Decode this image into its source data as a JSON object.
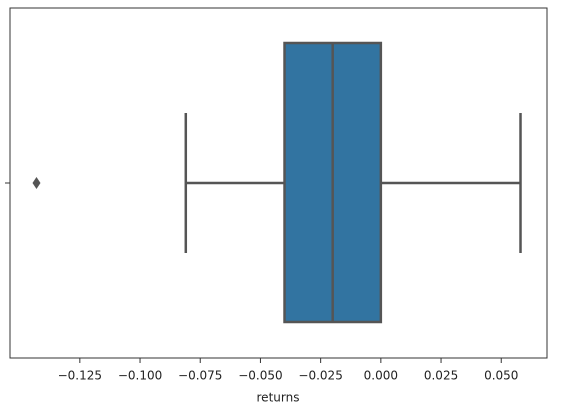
{
  "chart_data": {
    "type": "box",
    "x_label": "returns",
    "color": "#3274a1",
    "line_color": "#555555",
    "series": [
      {
        "q1": -0.04,
        "median": -0.02,
        "q3": 0.0,
        "whisker_low": -0.081,
        "whisker_high": 0.058,
        "outliers": [
          -0.143
        ]
      }
    ],
    "xlim": [
      -0.154,
      0.069
    ],
    "xticks": [
      {
        "value": -0.125,
        "label": "−0.125"
      },
      {
        "value": -0.1,
        "label": "−0.100"
      },
      {
        "value": -0.075,
        "label": "−0.075"
      },
      {
        "value": -0.05,
        "label": "−0.050"
      },
      {
        "value": -0.025,
        "label": "−0.025"
      },
      {
        "value": 0,
        "label": "0.000"
      },
      0.025,
      {
        "value": 0.05,
        "label": "0.050"
      }
    ]
  }
}
